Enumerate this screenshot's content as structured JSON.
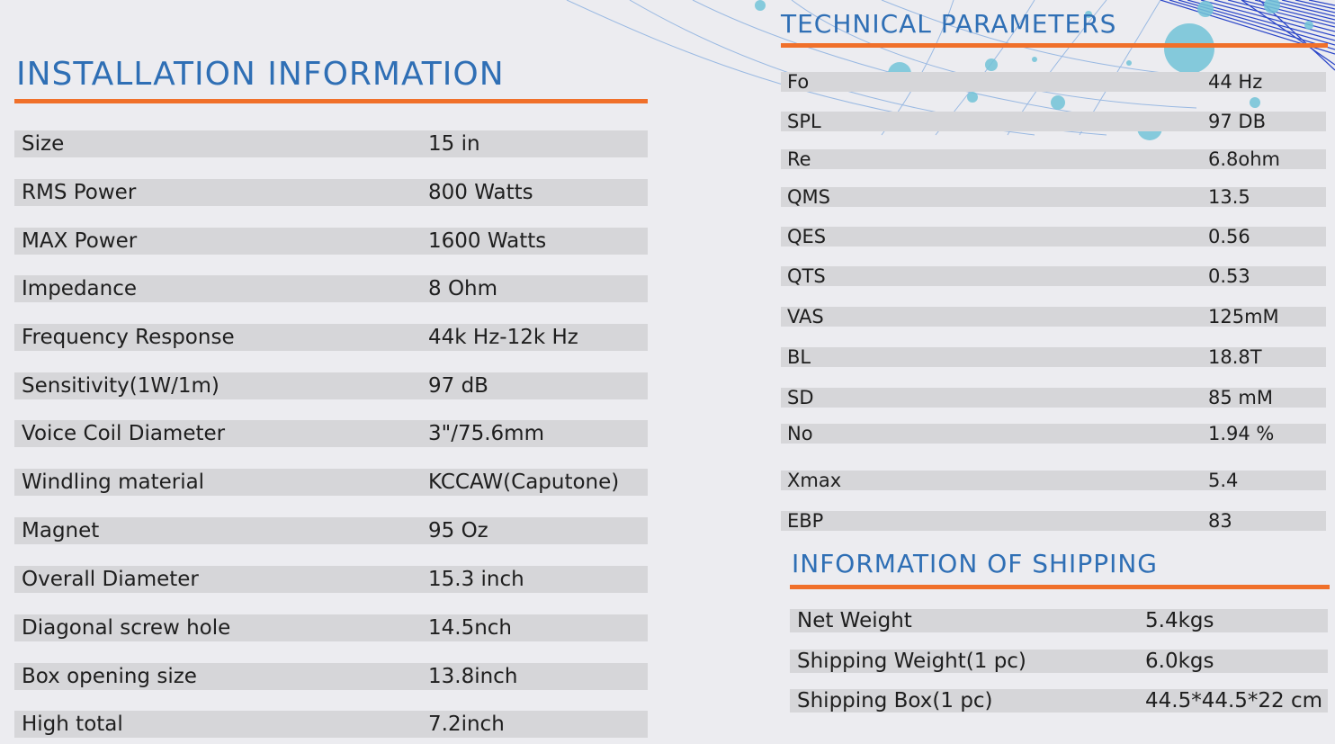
{
  "installation": {
    "title": "INSTALLATION INFORMATION",
    "rows": [
      {
        "label": "Size",
        "value": "15 in"
      },
      {
        "label": "RMS Power",
        "value": "800 Watts"
      },
      {
        "label": "MAX Power",
        "value": "1600 Watts"
      },
      {
        "label": "Impedance",
        "value": "8 Ohm"
      },
      {
        "label": "Frequency Response",
        "value": "44k Hz-12k Hz"
      },
      {
        "label": "Sensitivity(1W/1m)",
        "value": "97 dB"
      },
      {
        "label": "Voice Coil Diameter",
        "value": "3\"/75.6mm"
      },
      {
        "label": "Windling material",
        "value": "KCCAW(Caputone)"
      },
      {
        "label": "Magnet",
        "value": "95 Oz"
      },
      {
        "label": "Overall Diameter",
        "value": "15.3 inch"
      },
      {
        "label": "Diagonal screw hole",
        "value": "14.5nch"
      },
      {
        "label": "Box opening size",
        "value": "13.8inch"
      },
      {
        "label": "High total",
        "value": "7.2inch"
      }
    ]
  },
  "technical": {
    "title": "TECHNICAL PARAMETERS",
    "rows": [
      {
        "label": "Fo",
        "value": "44 Hz"
      },
      {
        "label": "SPL",
        "value": "97 DB"
      },
      {
        "label": "Re",
        "value": "6.8ohm"
      },
      {
        "label": "QMS",
        "value": "13.5"
      },
      {
        "label": "QES",
        "value": "0.56"
      },
      {
        "label": "QTS",
        "value": "0.53"
      },
      {
        "label": "VAS",
        "value": "125mM"
      },
      {
        "label": "BL",
        "value": "18.8T"
      },
      {
        "label": "SD",
        "value": "85 mM"
      },
      {
        "label": "No",
        "value": "1.94 %"
      },
      {
        "label": "Xmax",
        "value": "5.4"
      },
      {
        "label": "EBP",
        "value": "83"
      }
    ]
  },
  "shipping": {
    "title": "INFORMATION OF SHIPPING",
    "rows": [
      {
        "label": "Net Weight",
        "value": "5.4kgs"
      },
      {
        "label": "Shipping Weight(1 pc)",
        "value": "6.0kgs"
      },
      {
        "label": "Shipping Box(1 pc)",
        "value": "44.5*44.5*22 cm"
      }
    ]
  },
  "colors": {
    "heading": "#2f6fb5",
    "accent_rule": "#f0702a",
    "row_bar": "#d6d6d9",
    "background": "#ececf0",
    "decor_line": "#6a9ad8",
    "decor_bubble": "#6fc7d9"
  }
}
